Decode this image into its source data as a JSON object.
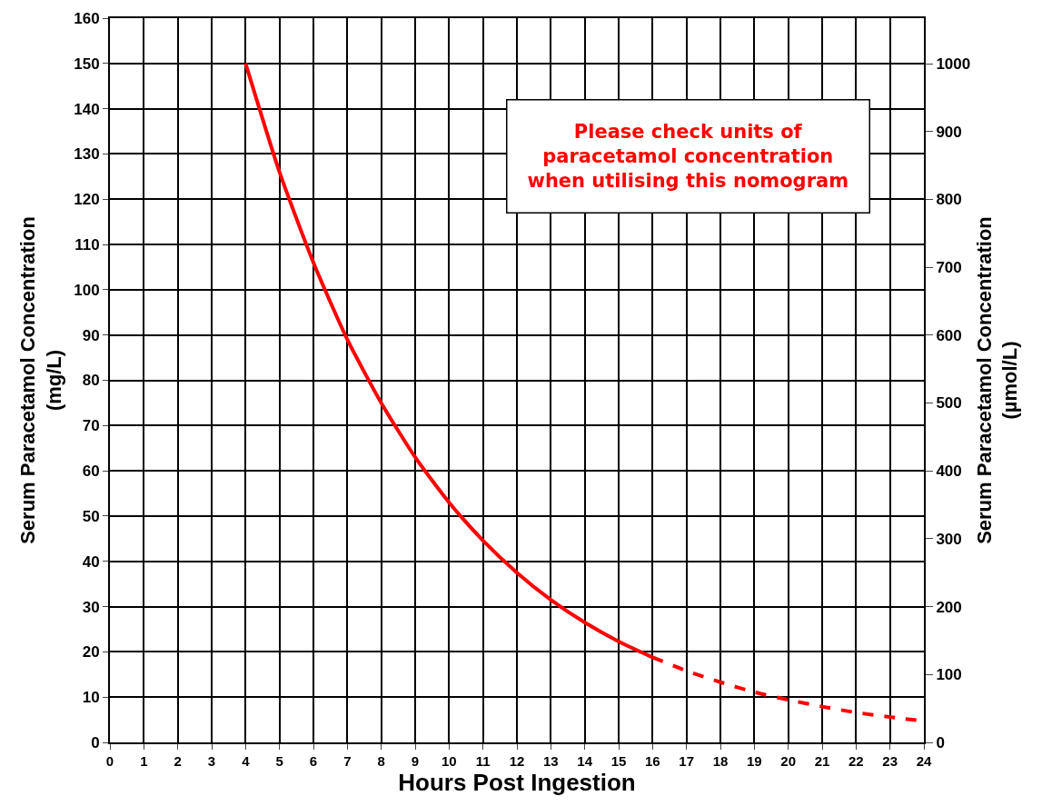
{
  "chart_data": {
    "type": "line",
    "xlabel": "Hours Post Ingestion",
    "ylabel": "Serum Paracetamol Concentration\n(mg/L)",
    "y2label": "Serum Paracetamol Concentration\n(µmol/L)",
    "series": [
      {
        "color": "#ff0000",
        "line_style": "solid",
        "x": [
          4,
          5,
          6,
          7,
          8,
          9,
          10,
          11,
          12,
          13,
          14,
          15,
          16
        ],
        "values": [
          150,
          126,
          106,
          89,
          75,
          63,
          53,
          44.6,
          37.5,
          31.5,
          26.5,
          22.3,
          18.8
        ]
      },
      {
        "color": "#ff0000",
        "line_style": "dashed",
        "x": [
          16,
          17,
          18,
          19,
          20,
          21,
          22,
          23,
          24
        ],
        "values": [
          18.8,
          15.8,
          13.3,
          11.1,
          9.4,
          7.9,
          6.6,
          5.6,
          4.7
        ]
      }
    ],
    "xlim": [
      0,
      24
    ],
    "xticks": [
      0,
      1,
      2,
      3,
      4,
      5,
      6,
      7,
      8,
      9,
      10,
      11,
      12,
      13,
      14,
      15,
      16,
      17,
      18,
      19,
      20,
      21,
      22,
      23,
      24
    ],
    "ylim": [
      0,
      160
    ],
    "yticks": [
      0,
      10,
      20,
      30,
      40,
      50,
      60,
      70,
      80,
      90,
      100,
      110,
      120,
      130,
      140,
      150,
      160
    ],
    "y2lim": [
      0,
      1067
    ],
    "y2ticks": [
      0,
      100,
      200,
      300,
      400,
      500,
      600,
      700,
      800,
      900,
      1000
    ],
    "grid": true,
    "marker": "none",
    "annotations": [
      "Please check units of\nparacetamol concentration\nwhen utilising this nomogram"
    ]
  }
}
